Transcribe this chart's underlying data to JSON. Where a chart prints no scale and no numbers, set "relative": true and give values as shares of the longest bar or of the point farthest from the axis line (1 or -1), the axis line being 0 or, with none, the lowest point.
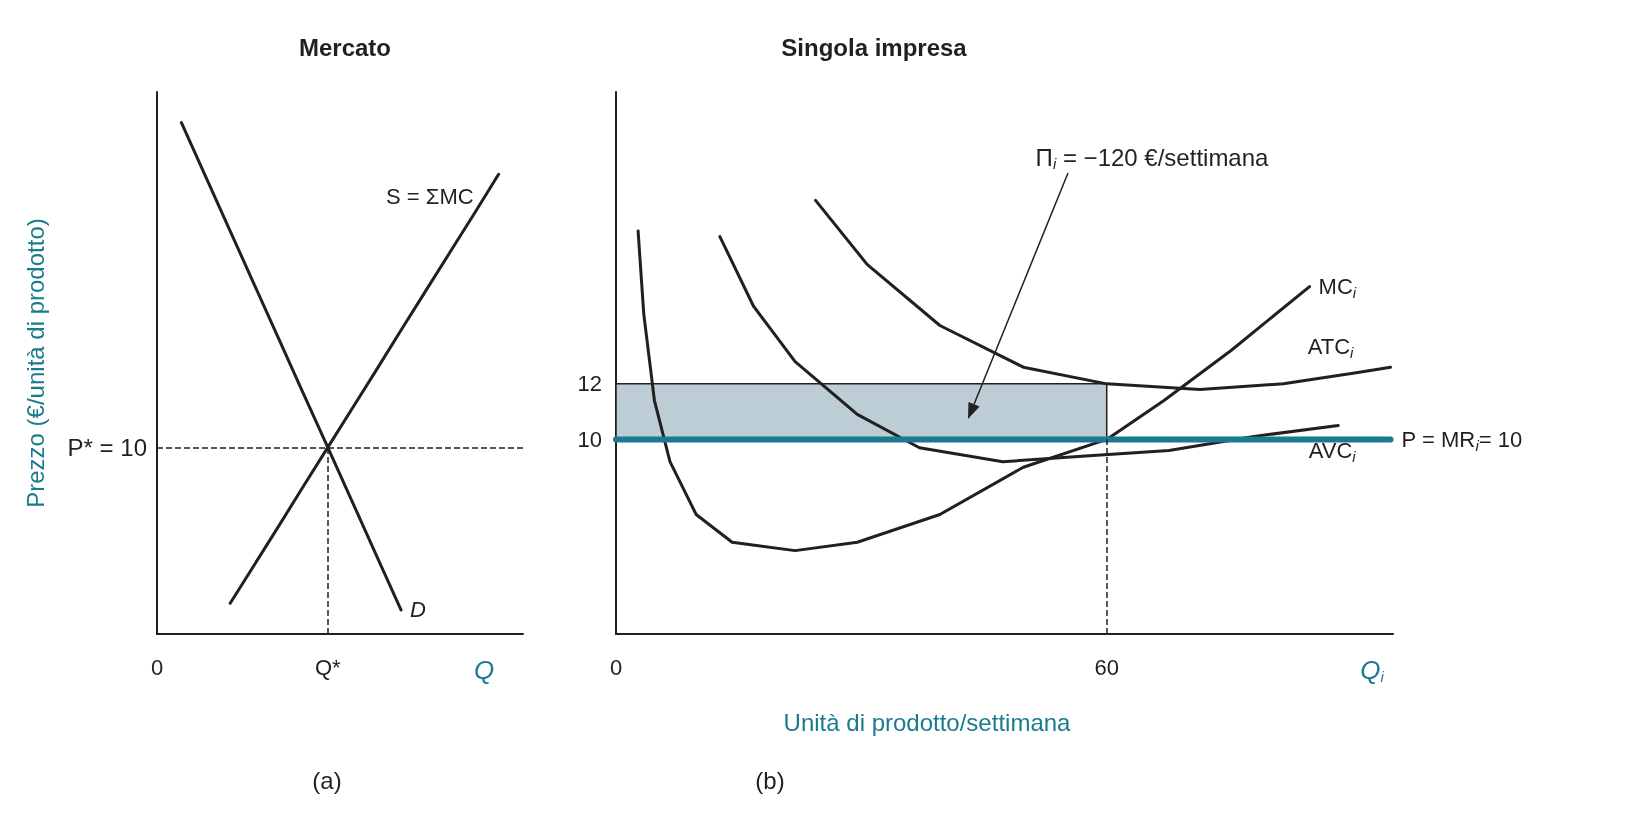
{
  "chart_data": [
    {
      "type": "line",
      "title": "Mercato",
      "ylabel": "Prezzo (€/unità di prodotto)",
      "xlabel": "Q",
      "relative": true,
      "grid": false,
      "legend": false,
      "marker": "none",
      "line_style": "solid",
      "categories": [
        "0",
        null,
        null,
        null,
        null,
        null,
        null,
        "Q*",
        null,
        null,
        null,
        null,
        null,
        null,
        null,
        null
      ],
      "series": [
        {
          "name": "S = ΣMC",
          "color": "#231f20",
          "values": [
            null,
            null,
            null,
            0.06,
            0.136,
            0.212,
            0.289,
            0.365,
            0.441,
            0.517,
            0.594,
            0.67,
            0.746,
            0.822,
            0.899,
            null
          ]
        },
        {
          "name": "D",
          "color": "#231f20",
          "values": [
            null,
            1.0,
            0.894,
            0.788,
            0.682,
            0.576,
            0.47,
            0.365,
            0.259,
            0.153,
            0.047,
            null,
            null,
            null,
            null,
            null
          ]
        }
      ],
      "ref_lines": [
        {
          "axis": "y",
          "value": 0.365,
          "line_style": "dashed"
        },
        {
          "axis": "x",
          "value": "Q*",
          "line_style": "dashed"
        }
      ],
      "annotations": [
        "P* = 10",
        "(a)"
      ]
    },
    {
      "type": "line",
      "title": "Singola impresa",
      "xlabel": "Q$_{i}$",
      "xlim": [
        0,
        95
      ],
      "xticks": [
        0,
        60
      ],
      "ylim": [
        3,
        22.5
      ],
      "yticks": [
        10,
        12
      ],
      "grid": false,
      "legend": false,
      "marker": "none",
      "line_style": "solid",
      "series": [
        {
          "name": "MC$_{i}$",
          "color": "#231f20",
          "x": [
            2.7,
            3.4,
            4.7,
            6.6,
            9.8,
            14.2,
            21.9,
            29.5,
            39.6,
            49.8,
            60,
            67,
            75.2,
            84.8
          ],
          "values": [
            17.5,
            14.5,
            11.4,
            9.2,
            7.3,
            6.3,
            6.0,
            6.3,
            7.3,
            9.0,
            10,
            11.4,
            13.2,
            15.5
          ]
        },
        {
          "name": "ATC$_{i}$",
          "color": "#231f20",
          "x": [
            24.4,
            30.7,
            39.6,
            49.8,
            60,
            71.4,
            81.6,
            90.5,
            94.7
          ],
          "values": [
            18.6,
            16.3,
            14.1,
            12.6,
            12.0,
            11.8,
            12.0,
            12.4,
            12.6
          ]
        },
        {
          "name": "AVC$_{i}$",
          "color": "#231f20",
          "x": [
            12.7,
            16.8,
            21.9,
            29.5,
            37.1,
            47.3,
            57.4,
            67.6,
            77.8,
            88.3
          ],
          "values": [
            17.3,
            14.8,
            12.8,
            10.9,
            9.7,
            9.2,
            9.4,
            9.6,
            10.1,
            10.5
          ]
        },
        {
          "name": "P = MR$_{i}$= 10",
          "color": "#1a7b8e",
          "x": [
            0,
            94.7
          ],
          "values": [
            10,
            10
          ]
        }
      ],
      "bands": [
        {
          "axis": "y",
          "from": 10,
          "to": 12,
          "color": "#bccdd6"
        }
      ],
      "ref_lines": [
        {
          "axis": "x",
          "value": 60,
          "line_style": "dashed"
        }
      ],
      "annotations": [
        "Π$_{i}$ = −120 €/settimana",
        "Unità di prodotto/settimana",
        "(b)"
      ]
    }
  ]
}
